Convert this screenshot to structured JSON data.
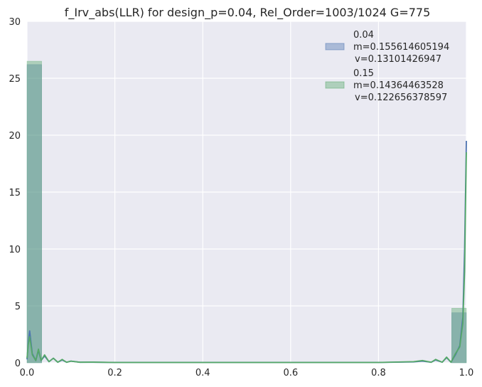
{
  "chart_data": {
    "type": "histogram",
    "title": "f_Irv_abs(LLR) for design_p=0.04, Rel_Order=1003/1024 G=775",
    "xlabel": "",
    "ylabel": "",
    "xlim": [
      0.0,
      1.0
    ],
    "ylim": [
      0,
      30
    ],
    "xticks": [
      "0.0",
      "0.2",
      "0.4",
      "0.6",
      "0.8",
      "1.0"
    ],
    "yticks": [
      "0",
      "5",
      "10",
      "15",
      "20",
      "25",
      "30"
    ],
    "xtick_values": [
      0.0,
      0.2,
      0.4,
      0.6,
      0.8,
      1.0
    ],
    "ytick_values": [
      0,
      5,
      10,
      15,
      20,
      25,
      30
    ],
    "grid": true,
    "legend_position": "top-right",
    "bins": [
      [
        0.0,
        0.0333
      ],
      [
        0.0333,
        0.0667
      ],
      [
        0.0667,
        0.1
      ],
      [
        0.1,
        0.9
      ],
      [
        0.9,
        0.9667
      ],
      [
        0.9667,
        1.0
      ]
    ],
    "series": [
      {
        "name": "0.04",
        "stats": [
          "m=0.155614605194",
          "v=0.13101426947"
        ],
        "color": "#4C72B0",
        "hist": [
          26.2,
          0,
          0,
          0,
          0,
          4.4
        ],
        "kde": [
          [
            0.0,
            0.3
          ],
          [
            0.003,
            1.8
          ],
          [
            0.006,
            2.8
          ],
          [
            0.012,
            0.8
          ],
          [
            0.02,
            0.2
          ],
          [
            0.026,
            1.1
          ],
          [
            0.032,
            0.2
          ],
          [
            0.04,
            0.6
          ],
          [
            0.05,
            0.1
          ],
          [
            0.06,
            0.4
          ],
          [
            0.07,
            0.05
          ],
          [
            0.08,
            0.25
          ],
          [
            0.09,
            0.05
          ],
          [
            0.1,
            0.15
          ],
          [
            0.12,
            0.05
          ],
          [
            0.15,
            0.05
          ],
          [
            0.2,
            0.03
          ],
          [
            0.5,
            0.03
          ],
          [
            0.8,
            0.03
          ],
          [
            0.88,
            0.08
          ],
          [
            0.9,
            0.15
          ],
          [
            0.92,
            0.05
          ],
          [
            0.93,
            0.25
          ],
          [
            0.945,
            0.05
          ],
          [
            0.955,
            0.45
          ],
          [
            0.965,
            0.05
          ],
          [
            0.975,
            0.7
          ],
          [
            0.985,
            1.5
          ],
          [
            0.992,
            4.0
          ],
          [
            0.996,
            10.0
          ],
          [
            1.0,
            19.5
          ]
        ]
      },
      {
        "name": "0.15",
        "stats": [
          "m=0.14364463528",
          "v=0.122656378597"
        ],
        "color": "#55A868",
        "hist": [
          26.5,
          0,
          0,
          0,
          0,
          4.8
        ],
        "kde": [
          [
            0.0,
            0.4
          ],
          [
            0.003,
            1.6
          ],
          [
            0.006,
            2.3
          ],
          [
            0.012,
            0.7
          ],
          [
            0.02,
            0.2
          ],
          [
            0.026,
            1.2
          ],
          [
            0.032,
            0.2
          ],
          [
            0.04,
            0.7
          ],
          [
            0.05,
            0.1
          ],
          [
            0.06,
            0.4
          ],
          [
            0.07,
            0.05
          ],
          [
            0.08,
            0.3
          ],
          [
            0.09,
            0.05
          ],
          [
            0.1,
            0.15
          ],
          [
            0.12,
            0.05
          ],
          [
            0.15,
            0.06
          ],
          [
            0.2,
            0.03
          ],
          [
            0.5,
            0.03
          ],
          [
            0.8,
            0.03
          ],
          [
            0.88,
            0.1
          ],
          [
            0.9,
            0.2
          ],
          [
            0.92,
            0.05
          ],
          [
            0.93,
            0.3
          ],
          [
            0.945,
            0.05
          ],
          [
            0.955,
            0.5
          ],
          [
            0.965,
            0.05
          ],
          [
            0.975,
            0.8
          ],
          [
            0.985,
            1.4
          ],
          [
            0.992,
            3.5
          ],
          [
            0.996,
            8.0
          ],
          [
            1.0,
            18.5
          ]
        ]
      }
    ]
  }
}
